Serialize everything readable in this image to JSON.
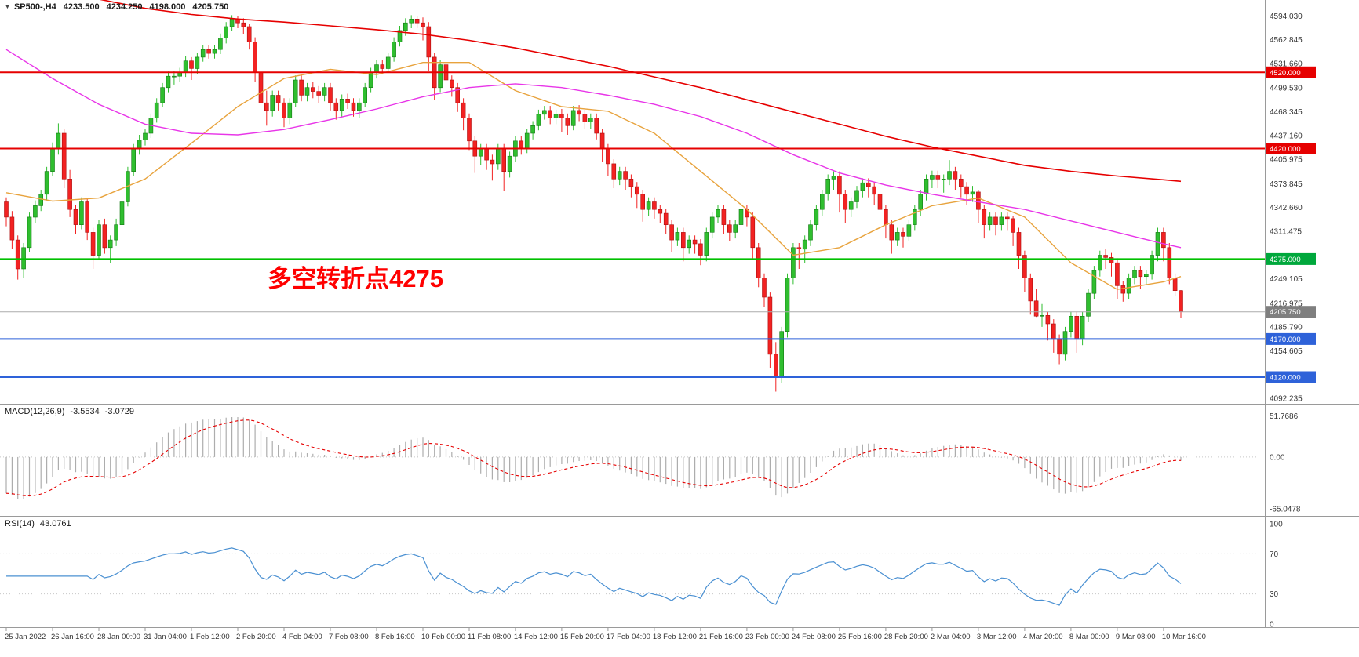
{
  "header": {
    "symbol": "SP500-,H4",
    "open": "4233.500",
    "high": "4234.250",
    "low": "4198.000",
    "close": "4205.750"
  },
  "annotation": {
    "text": "多空转折点4275",
    "color": "#FF0000"
  },
  "indicators": {
    "macd": {
      "label": "MACD(12,26,9)",
      "value1": "-3.5534",
      "value2": "-3.0729",
      "axis": [
        "51.7686",
        "0.00",
        "-65.0478"
      ]
    },
    "rsi": {
      "label": "RSI(14)",
      "value": "43.0761",
      "axis": [
        "100",
        "70",
        "30",
        "0"
      ],
      "levels": [
        70,
        30
      ]
    }
  },
  "price_axis": {
    "ticks": [
      "4594.030",
      "4562.845",
      "4531.660",
      "4499.530",
      "4468.345",
      "4437.160",
      "4405.975",
      "4373.845",
      "4342.660",
      "4311.475",
      "4249.105",
      "4216.975",
      "4185.790",
      "4154.605",
      "4092.235"
    ]
  },
  "levels": [
    {
      "price": 4520,
      "label": "4520.000",
      "line_color": "#E60000",
      "badge_color": "#E60000",
      "width": 2
    },
    {
      "price": 4420,
      "label": "4420.000",
      "line_color": "#E60000",
      "badge_color": "#E60000",
      "width": 2
    },
    {
      "price": 4275,
      "label": "4275.000",
      "line_color": "#00C000",
      "badge_color": "#00A83C",
      "width": 2
    },
    {
      "price": 4205.75,
      "label": "4205.750",
      "line_color": "#ABABAB",
      "badge_color": "#7F7F7F",
      "width": 1
    },
    {
      "price": 4170,
      "label": "4170.000",
      "line_color": "#2E62D9",
      "badge_color": "#2E62D9",
      "width": 2
    },
    {
      "price": 4120,
      "label": "4120.000",
      "line_color": "#2E62D9",
      "badge_color": "#2E62D9",
      "width": 2
    }
  ],
  "time_axis": [
    "25 Jan 2022",
    "26 Jan 16:00",
    "28 Jan 00:00",
    "31 Jan 04:00",
    "1 Feb 12:00",
    "2 Feb 20:00",
    "4 Feb 04:00",
    "7 Feb 08:00",
    "8 Feb 16:00",
    "10 Feb 00:00",
    "11 Feb 08:00",
    "14 Feb 12:00",
    "15 Feb 20:00",
    "17 Feb 04:00",
    "18 Feb 12:00",
    "21 Feb 16:00",
    "23 Feb 00:00",
    "24 Feb 08:00",
    "25 Feb 16:00",
    "28 Feb 20:00",
    "2 Mar 04:00",
    "3 Mar 12:00",
    "4 Mar 20:00",
    "8 Mar 00:00",
    "9 Mar 08:00",
    "10 Mar 16:00"
  ],
  "chart_data": {
    "type": "candlestick",
    "symbol": "SP500-",
    "timeframe": "H4",
    "title": "SP500- H4 with MACD(12,26,9) and RSI(14)",
    "macd_params": {
      "fast": 12,
      "slow": 26,
      "signal": 9
    },
    "rsi_period": 14,
    "colors": {
      "up": "#2FBE2F",
      "up_dark": "#157815",
      "down": "#F22222",
      "down_dark": "#AA0F0F",
      "macd_hist": "#ADADAD",
      "macd_signal": "#E60000",
      "rsi_line": "#4A90D2",
      "background": "#FFFFFF",
      "separator": "#9A9A9A",
      "level_dotted": "#C8C8C8"
    },
    "candles": [
      [
        4350,
        4356,
        4318,
        4330
      ],
      [
        4330,
        4338,
        4288,
        4300
      ],
      [
        4300,
        4306,
        4248,
        4262
      ],
      [
        4262,
        4296,
        4250,
        4290
      ],
      [
        4290,
        4336,
        4284,
        4330
      ],
      [
        4330,
        4352,
        4322,
        4345
      ],
      [
        4345,
        4366,
        4338,
        4360
      ],
      [
        4360,
        4396,
        4352,
        4390
      ],
      [
        4390,
        4428,
        4384,
        4420
      ],
      [
        4420,
        4453,
        4412,
        4440
      ],
      [
        4440,
        4446,
        4368,
        4380
      ],
      [
        4380,
        4392,
        4330,
        4340
      ],
      [
        4340,
        4346,
        4308,
        4320
      ],
      [
        4320,
        4356,
        4314,
        4350
      ],
      [
        4350,
        4354,
        4300,
        4310
      ],
      [
        4310,
        4316,
        4262,
        4280
      ],
      [
        4280,
        4326,
        4274,
        4320
      ],
      [
        4320,
        4328,
        4282,
        4290
      ],
      [
        4290,
        4306,
        4270,
        4300
      ],
      [
        4300,
        4328,
        4292,
        4320
      ],
      [
        4320,
        4356,
        4314,
        4350
      ],
      [
        4350,
        4396,
        4344,
        4390
      ],
      [
        4390,
        4426,
        4384,
        4420
      ],
      [
        4420,
        4438,
        4412,
        4431
      ],
      [
        4431,
        4446,
        4424,
        4440
      ],
      [
        4440,
        4466,
        4434,
        4460
      ],
      [
        4460,
        4486,
        4454,
        4480
      ],
      [
        4480,
        4506,
        4474,
        4500
      ],
      [
        4500,
        4521,
        4494,
        4515
      ],
      [
        4515,
        4522,
        4504,
        4515
      ],
      [
        4515,
        4526,
        4508,
        4520
      ],
      [
        4520,
        4541,
        4514,
        4535
      ],
      [
        4535,
        4540,
        4510,
        4525
      ],
      [
        4525,
        4546,
        4518,
        4540
      ],
      [
        4540,
        4556,
        4534,
        4550
      ],
      [
        4550,
        4556,
        4538,
        4545
      ],
      [
        4545,
        4556,
        4538,
        4550
      ],
      [
        4550,
        4571,
        4544,
        4565
      ],
      [
        4565,
        4586,
        4558,
        4580
      ],
      [
        4580,
        4595,
        4574,
        4590
      ],
      [
        4590,
        4594,
        4578,
        4585
      ],
      [
        4585,
        4591,
        4570,
        4580
      ],
      [
        4580,
        4584,
        4550,
        4560
      ],
      [
        4560,
        4566,
        4508,
        4520
      ],
      [
        4520,
        4526,
        4466,
        4480
      ],
      [
        4480,
        4496,
        4450,
        4470
      ],
      [
        4470,
        4496,
        4462,
        4490
      ],
      [
        4490,
        4496,
        4470,
        4480
      ],
      [
        4480,
        4486,
        4448,
        4460
      ],
      [
        4460,
        4486,
        4452,
        4480
      ],
      [
        4480,
        4516,
        4474,
        4510
      ],
      [
        4510,
        4516,
        4482,
        4490
      ],
      [
        4490,
        4506,
        4482,
        4500
      ],
      [
        4500,
        4508,
        4486,
        4495
      ],
      [
        4495,
        4502,
        4480,
        4490
      ],
      [
        4490,
        4506,
        4482,
        4500
      ],
      [
        4500,
        4506,
        4470,
        4480
      ],
      [
        4480,
        4486,
        4458,
        4470
      ],
      [
        4470,
        4491,
        4462,
        4485
      ],
      [
        4485,
        4492,
        4472,
        4480
      ],
      [
        4480,
        4486,
        4462,
        4470
      ],
      [
        4470,
        4486,
        4460,
        4480
      ],
      [
        4480,
        4506,
        4474,
        4500
      ],
      [
        4500,
        4526,
        4494,
        4520
      ],
      [
        4520,
        4536,
        4512,
        4530
      ],
      [
        4530,
        4536,
        4518,
        4525
      ],
      [
        4525,
        4546,
        4520,
        4540
      ],
      [
        4540,
        4566,
        4534,
        4560
      ],
      [
        4560,
        4581,
        4554,
        4575
      ],
      [
        4575,
        4591,
        4568,
        4585
      ],
      [
        4585,
        4595,
        4578,
        4590
      ],
      [
        4590,
        4594,
        4578,
        4585
      ],
      [
        4585,
        4592,
        4562,
        4580
      ],
      [
        4580,
        4586,
        4522,
        4540
      ],
      [
        4540,
        4546,
        4484,
        4500
      ],
      [
        4500,
        4536,
        4494,
        4530
      ],
      [
        4530,
        4536,
        4498,
        4510
      ],
      [
        4510,
        4516,
        4488,
        4500
      ],
      [
        4500,
        4506,
        4468,
        4480
      ],
      [
        4480,
        4486,
        4444,
        4460
      ],
      [
        4460,
        4466,
        4418,
        4430
      ],
      [
        4430,
        4436,
        4388,
        4410
      ],
      [
        4410,
        4426,
        4398,
        4420
      ],
      [
        4420,
        4426,
        4392,
        4405
      ],
      [
        4405,
        4412,
        4378,
        4400
      ],
      [
        4400,
        4426,
        4392,
        4420
      ],
      [
        4420,
        4426,
        4364,
        4390
      ],
      [
        4390,
        4416,
        4382,
        4410
      ],
      [
        4410,
        4436,
        4402,
        4430
      ],
      [
        4430,
        4436,
        4412,
        4420
      ],
      [
        4420,
        4446,
        4414,
        4440
      ],
      [
        4440,
        4456,
        4432,
        4450
      ],
      [
        4450,
        4471,
        4444,
        4465
      ],
      [
        4465,
        4476,
        4458,
        4470
      ],
      [
        4470,
        4476,
        4452,
        4460
      ],
      [
        4460,
        4471,
        4452,
        4465
      ],
      [
        4465,
        4472,
        4442,
        4460
      ],
      [
        4460,
        4466,
        4438,
        4450
      ],
      [
        4450,
        4476,
        4444,
        4470
      ],
      [
        4470,
        4477,
        4456,
        4465
      ],
      [
        4465,
        4471,
        4446,
        4455
      ],
      [
        4455,
        4466,
        4446,
        4460
      ],
      [
        4460,
        4466,
        4432,
        4440
      ],
      [
        4440,
        4446,
        4402,
        4420
      ],
      [
        4420,
        4426,
        4384,
        4400
      ],
      [
        4400,
        4406,
        4368,
        4380
      ],
      [
        4380,
        4396,
        4372,
        4390
      ],
      [
        4390,
        4396,
        4366,
        4380
      ],
      [
        4380,
        4386,
        4356,
        4370
      ],
      [
        4370,
        4376,
        4342,
        4360
      ],
      [
        4360,
        4366,
        4324,
        4340
      ],
      [
        4340,
        4356,
        4332,
        4350
      ],
      [
        4350,
        4356,
        4328,
        4340
      ],
      [
        4340,
        4346,
        4322,
        4335
      ],
      [
        4335,
        4341,
        4308,
        4320
      ],
      [
        4320,
        4326,
        4284,
        4300
      ],
      [
        4300,
        4316,
        4292,
        4310
      ],
      [
        4310,
        4316,
        4272,
        4290
      ],
      [
        4290,
        4306,
        4282,
        4300
      ],
      [
        4300,
        4306,
        4282,
        4295
      ],
      [
        4295,
        4301,
        4267,
        4280
      ],
      [
        4280,
        4316,
        4272,
        4310
      ],
      [
        4310,
        4336,
        4302,
        4330
      ],
      [
        4330,
        4346,
        4322,
        4340
      ],
      [
        4340,
        4346,
        4308,
        4320
      ],
      [
        4320,
        4326,
        4298,
        4310
      ],
      [
        4310,
        4326,
        4302,
        4320
      ],
      [
        4320,
        4346,
        4312,
        4340
      ],
      [
        4340,
        4346,
        4318,
        4330
      ],
      [
        4330,
        4336,
        4276,
        4290
      ],
      [
        4290,
        4296,
        4238,
        4250
      ],
      [
        4250,
        4256,
        4212,
        4225
      ],
      [
        4225,
        4231,
        4132,
        4150
      ],
      [
        4150,
        4166,
        4101,
        4120
      ],
      [
        4120,
        4186,
        4112,
        4180
      ],
      [
        4180,
        4256,
        4172,
        4250
      ],
      [
        4250,
        4296,
        4242,
        4290
      ],
      [
        4290,
        4296,
        4262,
        4288
      ],
      [
        4288,
        4306,
        4270,
        4300
      ],
      [
        4300,
        4326,
        4292,
        4320
      ],
      [
        4320,
        4346,
        4312,
        4340
      ],
      [
        4340,
        4366,
        4332,
        4360
      ],
      [
        4360,
        4386,
        4352,
        4380
      ],
      [
        4380,
        4390,
        4366,
        4384
      ],
      [
        4384,
        4390,
        4336,
        4360
      ],
      [
        4360,
        4366,
        4322,
        4340
      ],
      [
        4340,
        4356,
        4330,
        4350
      ],
      [
        4350,
        4371,
        4342,
        4365
      ],
      [
        4365,
        4381,
        4356,
        4375
      ],
      [
        4375,
        4381,
        4356,
        4370
      ],
      [
        4370,
        4376,
        4346,
        4360
      ],
      [
        4360,
        4366,
        4326,
        4340
      ],
      [
        4340,
        4346,
        4302,
        4320
      ],
      [
        4320,
        4326,
        4282,
        4300
      ],
      [
        4300,
        4316,
        4292,
        4310
      ],
      [
        4310,
        4316,
        4290,
        4305
      ],
      [
        4305,
        4326,
        4298,
        4320
      ],
      [
        4320,
        4346,
        4312,
        4340
      ],
      [
        4340,
        4366,
        4332,
        4360
      ],
      [
        4360,
        4386,
        4352,
        4380
      ],
      [
        4380,
        4391,
        4368,
        4385
      ],
      [
        4385,
        4391,
        4368,
        4380
      ],
      [
        4380,
        4386,
        4362,
        4380
      ],
      [
        4380,
        4405,
        4372,
        4390
      ],
      [
        4390,
        4396,
        4366,
        4380
      ],
      [
        4380,
        4386,
        4356,
        4370
      ],
      [
        4370,
        4376,
        4346,
        4360
      ],
      [
        4360,
        4371,
        4350,
        4363
      ],
      [
        4363,
        4366,
        4322,
        4340
      ],
      [
        4340,
        4346,
        4302,
        4320
      ],
      [
        4320,
        4336,
        4312,
        4330
      ],
      [
        4330,
        4336,
        4306,
        4320
      ],
      [
        4320,
        4336,
        4312,
        4330
      ],
      [
        4330,
        4336,
        4312,
        4328
      ],
      [
        4328,
        4331,
        4292,
        4310
      ],
      [
        4310,
        4316,
        4262,
        4280
      ],
      [
        4280,
        4286,
        4232,
        4250
      ],
      [
        4250,
        4256,
        4202,
        4220
      ],
      [
        4220,
        4236,
        4199,
        4200
      ],
      [
        4200,
        4216,
        4186,
        4201
      ],
      [
        4201,
        4206,
        4168,
        4190
      ],
      [
        4190,
        4196,
        4152,
        4170
      ],
      [
        4170,
        4176,
        4137,
        4150
      ],
      [
        4150,
        4186,
        4142,
        4180
      ],
      [
        4180,
        4206,
        4172,
        4200
      ],
      [
        4200,
        4206,
        4152,
        4170
      ],
      [
        4170,
        4206,
        4162,
        4200
      ],
      [
        4200,
        4236,
        4192,
        4230
      ],
      [
        4230,
        4266,
        4222,
        4260
      ],
      [
        4260,
        4286,
        4252,
        4280
      ],
      [
        4280,
        4288,
        4262,
        4277
      ],
      [
        4277,
        4283,
        4252,
        4270
      ],
      [
        4270,
        4276,
        4222,
        4240
      ],
      [
        4240,
        4246,
        4219,
        4230
      ],
      [
        4230,
        4256,
        4222,
        4250
      ],
      [
        4250,
        4266,
        4242,
        4260
      ],
      [
        4260,
        4266,
        4236,
        4252
      ],
      [
        4252,
        4261,
        4242,
        4255
      ],
      [
        4255,
        4286,
        4248,
        4280
      ],
      [
        4280,
        4316,
        4272,
        4310
      ],
      [
        4310,
        4316,
        4272,
        4290
      ],
      [
        4290,
        4296,
        4242,
        4250
      ],
      [
        4250,
        4256,
        4226,
        4233.5
      ],
      [
        4233.5,
        4234.25,
        4198,
        4205.75
      ]
    ],
    "ma_lines": [
      {
        "name": "ma-fast-line",
        "color": "#E8A33D",
        "width": 1.4,
        "step": 8,
        "values": [
          4362,
          4351,
          4355,
          4380,
          4427,
          4475,
          4512,
          4524,
          4517,
          4533,
          4533,
          4496,
          4475,
          4469,
          4440,
          4390,
          4340,
          4280,
          4290,
          4320,
          4345,
          4355,
          4330,
          4270,
          4235,
          4245,
          4252
        ]
      },
      {
        "name": "ma-mid-line",
        "color": "#E835E8",
        "width": 1.4,
        "step": 8,
        "values": [
          4550,
          4512,
          4478,
          4452,
          4440,
          4438,
          4445,
          4458,
          4472,
          4488,
          4500,
          4505,
          4500,
          4490,
          4478,
          4462,
          4440,
          4412,
          4388,
          4372,
          4360,
          4350,
          4340,
          4325,
          4310,
          4295,
          4290
        ]
      },
      {
        "name": "ma-slow-line",
        "color": "#E60000",
        "width": 1.6,
        "step": 8,
        "values": [
          4645,
          4630,
          4616,
          4604,
          4596,
          4590,
          4586,
          4581,
          4576,
          4570,
          4562,
          4552,
          4540,
          4528,
          4514,
          4500,
          4484,
          4468,
          4452,
          4436,
          4422,
          4410,
          4398,
          4390,
          4384,
          4379,
          4377
        ]
      }
    ]
  }
}
